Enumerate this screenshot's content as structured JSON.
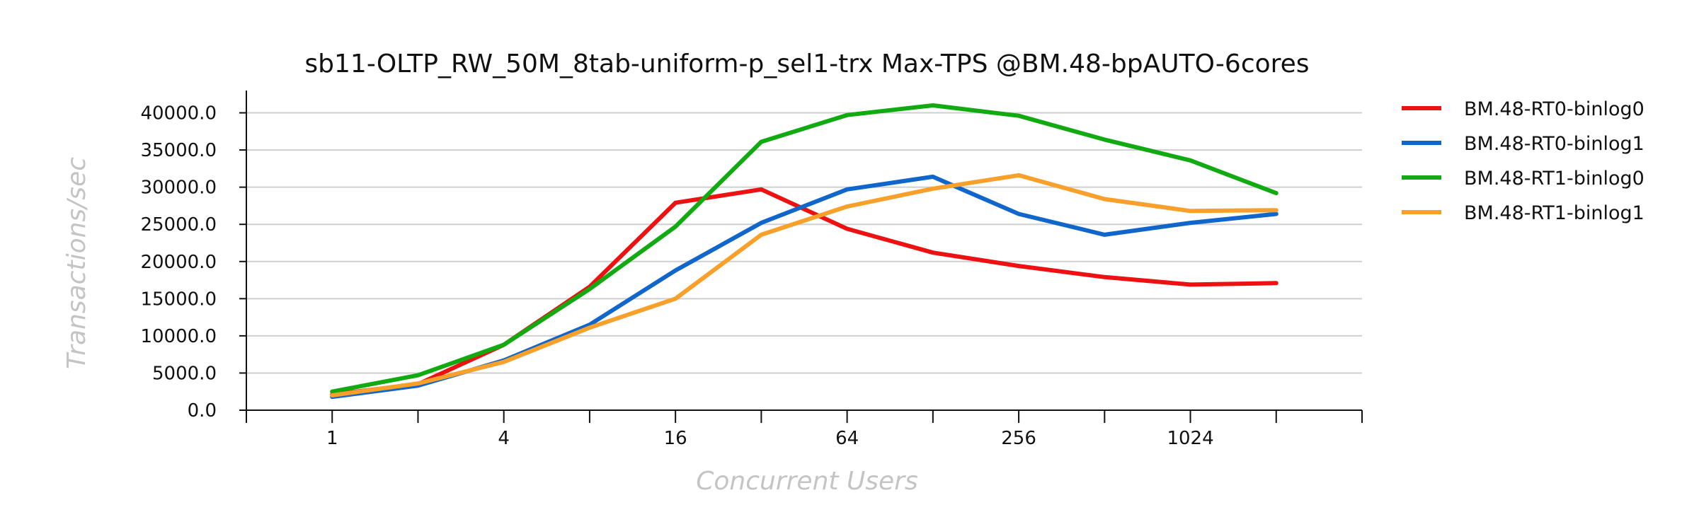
{
  "chart_data": {
    "type": "line",
    "title": "sb11-OLTP_RW_50M_8tab-uniform-p_sel1-trx Max-TPS @BM.48-bpAUTO-6cores",
    "xlabel": "Concurrent Users",
    "ylabel": "Transactions/sec",
    "x_scale": "log2",
    "x": [
      1,
      2,
      4,
      8,
      16,
      32,
      64,
      128,
      256,
      512,
      1024,
      2048
    ],
    "x_tick_values": [
      1,
      4,
      16,
      64,
      256,
      1024
    ],
    "x_tick_labels": [
      "1",
      "4",
      "16",
      "64",
      "256",
      "1024"
    ],
    "xlim": [
      0.5,
      4096
    ],
    "ylim": [
      0,
      43000
    ],
    "y_ticks": [
      0,
      5000,
      10000,
      15000,
      20000,
      25000,
      30000,
      35000,
      40000
    ],
    "y_tick_labels": [
      "0.0",
      "5000.0",
      "10000.0",
      "15000.0",
      "20000.0",
      "25000.0",
      "30000.0",
      "35000.0",
      "40000.0"
    ],
    "grid": true,
    "legend_position": "right",
    "series": [
      {
        "name": "BM.48-RT0-binlog0",
        "color": "#ee1111",
        "values": [
          2100,
          3500,
          8800,
          16600,
          27900,
          29700,
          24400,
          21200,
          19400,
          17900,
          16900,
          17100
        ]
      },
      {
        "name": "BM.48-RT0-binlog1",
        "color": "#1166cc",
        "values": [
          1800,
          3300,
          6700,
          11500,
          18800,
          25200,
          29700,
          31400,
          26400,
          23600,
          25200,
          26400
        ]
      },
      {
        "name": "BM.48-RT1-binlog0",
        "color": "#11aa11",
        "values": [
          2500,
          4700,
          8800,
          16300,
          24700,
          36100,
          39700,
          41000,
          39600,
          36400,
          33600,
          29200
        ]
      },
      {
        "name": "BM.48-RT1-binlog1",
        "color": "#f9a02a",
        "values": [
          2000,
          3600,
          6500,
          11100,
          15000,
          23600,
          27400,
          29800,
          31600,
          28400,
          26800,
          26900
        ]
      }
    ]
  }
}
